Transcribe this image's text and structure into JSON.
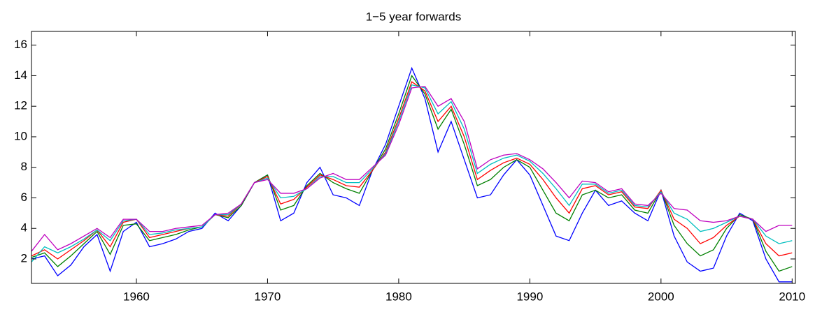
{
  "chart_data": {
    "type": "line",
    "title": "1−5 year forwards",
    "x": [
      1952,
      1953,
      1954,
      1955,
      1956,
      1957,
      1958,
      1959,
      1960,
      1961,
      1962,
      1963,
      1964,
      1965,
      1966,
      1967,
      1968,
      1969,
      1970,
      1971,
      1972,
      1973,
      1974,
      1975,
      1976,
      1977,
      1978,
      1979,
      1980,
      1981,
      1982,
      1983,
      1984,
      1985,
      1986,
      1987,
      1988,
      1989,
      1990,
      1991,
      1992,
      1993,
      1994,
      1995,
      1996,
      1997,
      1998,
      1999,
      2000,
      2001,
      2002,
      2003,
      2004,
      2005,
      2006,
      2007,
      2008,
      2009,
      2010
    ],
    "series": [
      {
        "color": "#0000ff",
        "values": [
          2.0,
          2.2,
          0.9,
          1.6,
          2.8,
          3.6,
          1.2,
          3.8,
          4.4,
          2.8,
          3.0,
          3.3,
          3.8,
          4.0,
          5.0,
          4.5,
          5.5,
          7.0,
          7.5,
          4.5,
          5.0,
          7.0,
          8.0,
          6.2,
          6.0,
          5.5,
          7.8,
          9.5,
          12.0,
          14.5,
          12.5,
          9.0,
          11.0,
          8.5,
          6.0,
          6.2,
          7.5,
          8.5,
          7.5,
          5.5,
          3.5,
          3.2,
          5.0,
          6.5,
          5.5,
          5.8,
          5.0,
          4.5,
          6.5,
          3.5,
          1.8,
          1.2,
          1.4,
          3.5,
          5.0,
          4.5,
          2.0,
          0.5,
          0.5
        ]
      },
      {
        "color": "#008000",
        "values": [
          2.1,
          2.4,
          1.5,
          2.2,
          3.0,
          3.8,
          2.3,
          4.2,
          4.3,
          3.2,
          3.4,
          3.6,
          3.9,
          4.1,
          4.9,
          4.7,
          5.5,
          7.0,
          7.5,
          5.2,
          5.5,
          6.8,
          7.6,
          7.0,
          6.6,
          6.3,
          7.8,
          9.2,
          11.5,
          14.0,
          12.8,
          10.5,
          11.8,
          9.5,
          6.8,
          7.2,
          8.0,
          8.5,
          8.0,
          6.5,
          5.0,
          4.5,
          6.2,
          6.5,
          6.0,
          6.2,
          5.2,
          5.0,
          6.5,
          4.2,
          3.0,
          2.2,
          2.6,
          4.0,
          4.9,
          4.6,
          2.5,
          1.2,
          1.5
        ]
      },
      {
        "color": "#ff0000",
        "values": [
          2.2,
          2.6,
          2.0,
          2.6,
          3.2,
          3.9,
          2.8,
          4.4,
          4.6,
          3.4,
          3.6,
          3.8,
          4.0,
          4.1,
          4.9,
          4.8,
          5.6,
          7.0,
          7.4,
          5.6,
          5.9,
          6.7,
          7.5,
          7.2,
          6.8,
          6.7,
          7.8,
          9.0,
          11.2,
          13.6,
          13.0,
          11.0,
          12.0,
          10.0,
          7.2,
          7.8,
          8.3,
          8.6,
          8.2,
          7.2,
          6.0,
          5.0,
          6.6,
          6.8,
          6.2,
          6.4,
          5.4,
          5.3,
          6.5,
          4.6,
          4.0,
          3.0,
          3.4,
          4.2,
          4.8,
          4.6,
          3.0,
          2.2,
          2.4
        ]
      },
      {
        "color": "#00bfbf",
        "values": [
          1.8,
          2.8,
          2.4,
          2.8,
          3.3,
          3.9,
          3.2,
          4.5,
          4.6,
          3.6,
          3.7,
          3.9,
          4.0,
          4.1,
          4.9,
          4.9,
          5.6,
          7.0,
          7.3,
          6.0,
          6.1,
          6.6,
          7.4,
          7.4,
          7.0,
          7.0,
          7.9,
          8.9,
          11.0,
          13.4,
          13.2,
          11.5,
          12.3,
          10.5,
          7.6,
          8.2,
          8.6,
          8.8,
          8.4,
          7.6,
          6.6,
          5.5,
          6.9,
          6.9,
          6.3,
          6.5,
          5.5,
          5.4,
          6.4,
          5.0,
          4.6,
          3.8,
          4.0,
          4.4,
          4.8,
          4.6,
          3.5,
          3.0,
          3.2
        ]
      },
      {
        "color": "#bf00bf",
        "values": [
          2.5,
          3.6,
          2.6,
          3.0,
          3.5,
          4.0,
          3.4,
          4.6,
          4.6,
          3.8,
          3.8,
          4.0,
          4.1,
          4.2,
          4.9,
          5.0,
          5.6,
          7.0,
          7.2,
          6.3,
          6.3,
          6.6,
          7.3,
          7.6,
          7.2,
          7.2,
          8.0,
          8.8,
          10.8,
          13.2,
          13.3,
          12.0,
          12.5,
          11.0,
          7.9,
          8.5,
          8.8,
          8.9,
          8.5,
          7.9,
          7.0,
          6.0,
          7.1,
          7.0,
          6.4,
          6.6,
          5.6,
          5.5,
          6.3,
          5.3,
          5.2,
          4.5,
          4.4,
          4.5,
          4.8,
          4.6,
          3.8,
          4.2,
          4.2
        ]
      }
    ],
    "xlim": [
      1952,
      2010.25
    ],
    "xticks": [
      1960,
      1970,
      1980,
      1990,
      2000,
      2010
    ],
    "ylim": [
      0.4,
      16.9
    ],
    "yticks": [
      2,
      4,
      6,
      8,
      10,
      12,
      14,
      16
    ]
  }
}
